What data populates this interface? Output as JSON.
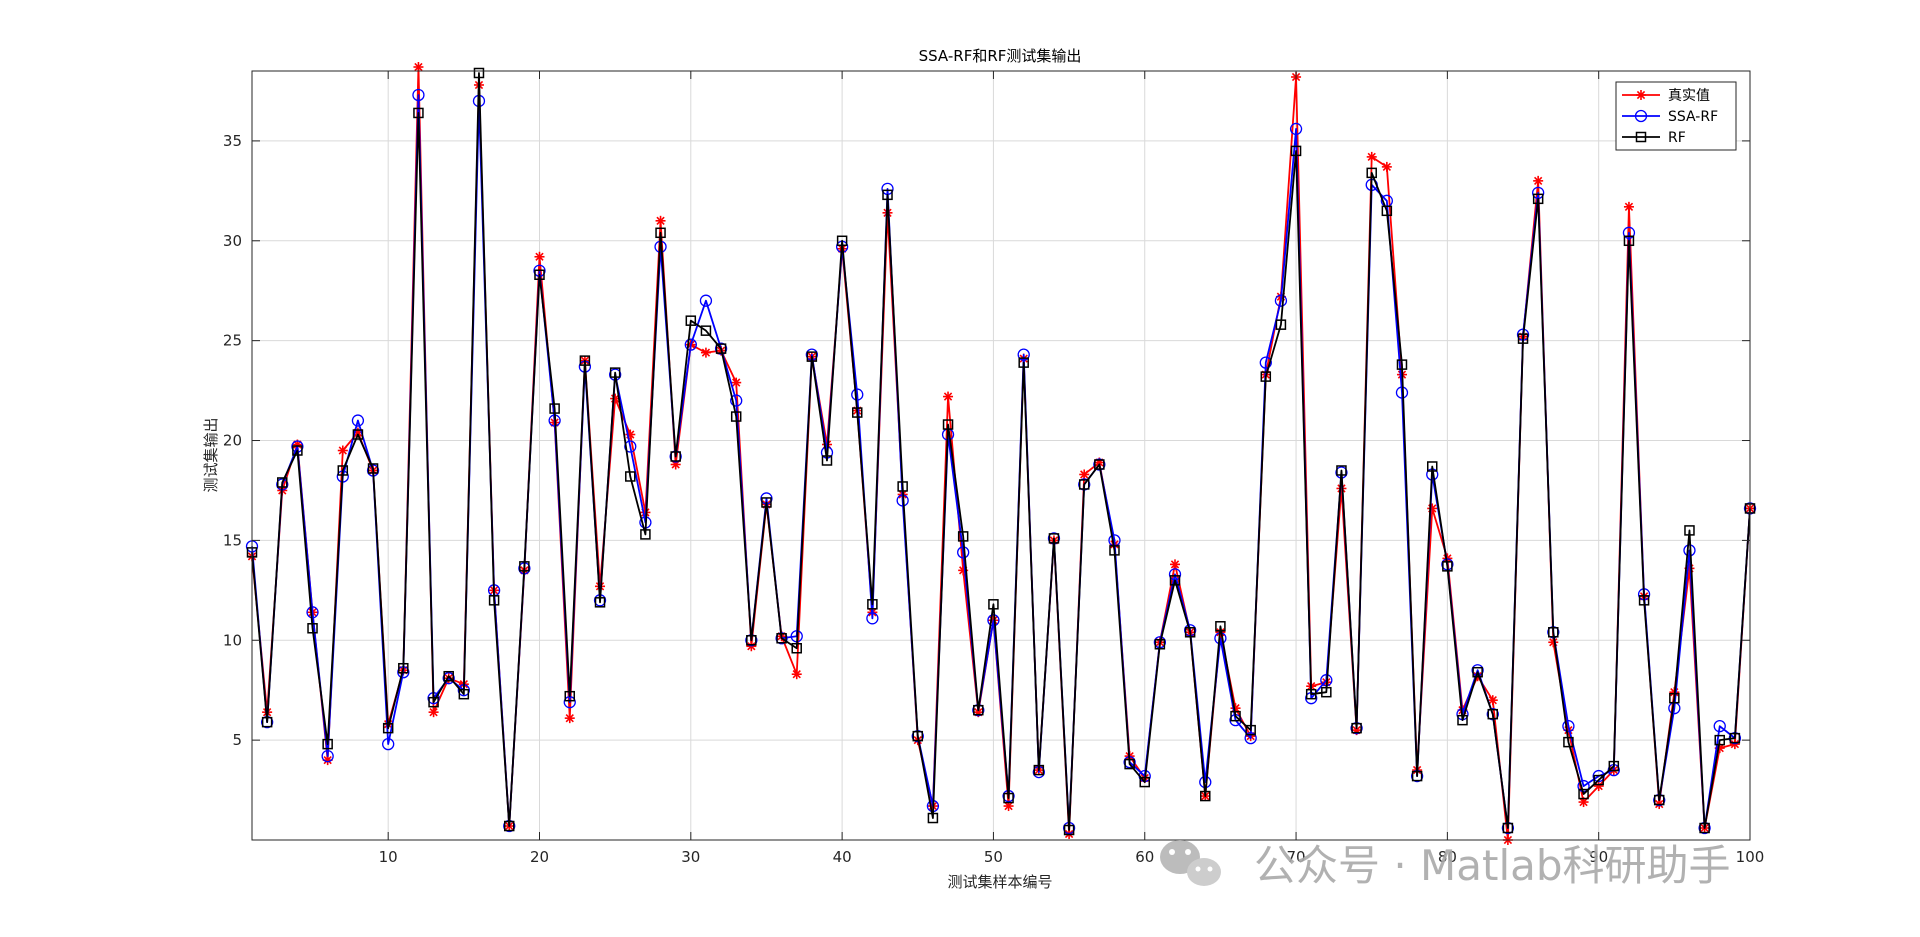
{
  "chart_data": {
    "type": "line",
    "title": "SSA-RF和RF测试集输出",
    "xlabel": "测试集样本编号",
    "ylabel": "测试集输出",
    "xlim": [
      1,
      100
    ],
    "ylim": [
      0,
      38.5
    ],
    "xticks": [
      10,
      20,
      30,
      40,
      50,
      60,
      70,
      80,
      90,
      100
    ],
    "yticks": [
      5,
      10,
      15,
      20,
      25,
      30,
      35
    ],
    "grid": true,
    "legend_position": "top-right",
    "x": [
      1,
      2,
      3,
      4,
      5,
      6,
      7,
      8,
      9,
      10,
      11,
      12,
      13,
      14,
      15,
      16,
      17,
      18,
      19,
      20,
      21,
      22,
      23,
      24,
      25,
      26,
      27,
      28,
      29,
      30,
      31,
      32,
      33,
      34,
      35,
      36,
      37,
      38,
      39,
      40,
      41,
      42,
      43,
      44,
      45,
      46,
      47,
      48,
      49,
      50,
      51,
      52,
      53,
      54,
      55,
      56,
      57,
      58,
      59,
      60,
      61,
      62,
      63,
      64,
      65,
      66,
      67,
      68,
      69,
      70,
      71,
      72,
      73,
      74,
      75,
      76,
      77,
      78,
      79,
      80,
      81,
      82,
      83,
      84,
      85,
      86,
      87,
      88,
      89,
      90,
      91,
      92,
      93,
      94,
      95,
      96,
      97,
      98,
      99,
      100
    ],
    "series": [
      {
        "name": "真实值",
        "color": "#ff0000",
        "marker": "asterisk",
        "values": [
          14.2,
          6.4,
          17.5,
          19.8,
          11.4,
          4.0,
          19.5,
          20.4,
          18.5,
          5.8,
          8.5,
          38.7,
          6.4,
          8.1,
          7.8,
          37.8,
          12.5,
          0.7,
          13.5,
          29.2,
          20.9,
          6.1,
          24.0,
          12.7,
          22.1,
          20.3,
          16.4,
          31.0,
          18.8,
          24.8,
          24.4,
          24.5,
          22.9,
          9.7,
          16.8,
          10.2,
          8.3,
          24.2,
          19.8,
          29.6,
          21.5,
          11.4,
          31.4,
          17.3,
          5.0,
          1.7,
          22.2,
          13.5,
          6.4,
          11.0,
          1.7,
          24.1,
          3.5,
          15.0,
          0.3,
          18.3,
          18.9,
          14.8,
          4.2,
          3.1,
          9.9,
          13.8,
          10.4,
          2.2,
          10.4,
          6.6,
          5.2,
          23.3,
          27.2,
          38.2,
          7.7,
          7.9,
          17.6,
          5.5,
          34.2,
          33.7,
          23.3,
          3.5,
          16.6,
          14.1,
          6.5,
          8.2,
          7.0,
          0.0,
          25.2,
          33.0,
          9.9,
          5.5,
          1.9,
          2.7,
          3.5,
          31.7,
          12.2,
          1.8,
          7.4,
          13.6,
          0.6,
          4.6,
          4.8,
          16.6
        ]
      },
      {
        "name": "SSA-RF",
        "color": "#0000ff",
        "marker": "circle",
        "values": [
          14.7,
          5.9,
          17.8,
          19.7,
          11.4,
          4.2,
          18.2,
          21.0,
          18.5,
          4.8,
          8.4,
          37.3,
          7.1,
          8.1,
          7.5,
          37.0,
          12.5,
          0.7,
          13.6,
          28.5,
          21.0,
          6.9,
          23.7,
          12.0,
          23.3,
          19.7,
          15.9,
          29.7,
          19.2,
          24.8,
          27.0,
          24.6,
          22.0,
          10.0,
          17.1,
          10.1,
          10.2,
          24.3,
          19.4,
          29.7,
          22.3,
          11.1,
          32.6,
          17.0,
          5.2,
          1.7,
          20.3,
          14.4,
          6.5,
          11.0,
          2.2,
          24.3,
          3.4,
          15.1,
          0.6,
          17.8,
          18.8,
          15.0,
          3.9,
          3.2,
          9.9,
          13.3,
          10.5,
          2.9,
          10.1,
          6.0,
          5.1,
          23.9,
          27.0,
          35.6,
          7.1,
          8.0,
          18.4,
          5.6,
          32.8,
          32.0,
          22.4,
          3.2,
          18.3,
          13.8,
          6.3,
          8.5,
          6.3,
          0.6,
          25.3,
          32.4,
          10.4,
          5.7,
          2.7,
          3.2,
          3.5,
          30.4,
          12.3,
          2.0,
          6.6,
          14.5,
          0.6,
          5.7,
          5.1,
          16.6
        ]
      },
      {
        "name": "RF",
        "color": "#000000",
        "marker": "square",
        "values": [
          14.4,
          5.9,
          17.9,
          19.5,
          10.6,
          4.8,
          18.5,
          20.3,
          18.6,
          5.6,
          8.6,
          36.4,
          6.9,
          8.2,
          7.3,
          38.4,
          12.0,
          0.7,
          13.7,
          28.3,
          21.6,
          7.2,
          24.0,
          11.9,
          23.4,
          18.2,
          15.3,
          30.4,
          19.2,
          26.0,
          25.5,
          24.6,
          21.2,
          10.0,
          16.9,
          10.1,
          9.6,
          24.2,
          19.0,
          30.0,
          21.4,
          11.8,
          32.3,
          17.7,
          5.2,
          1.1,
          20.8,
          15.2,
          6.5,
          11.8,
          2.1,
          23.9,
          3.5,
          15.1,
          0.5,
          17.8,
          18.8,
          14.5,
          3.8,
          2.9,
          9.8,
          13.0,
          10.4,
          2.2,
          10.7,
          6.2,
          5.5,
          23.2,
          25.8,
          34.5,
          7.3,
          7.4,
          18.5,
          5.6,
          33.4,
          31.5,
          23.8,
          3.2,
          18.7,
          13.7,
          6.0,
          8.4,
          6.3,
          0.6,
          25.1,
          32.1,
          10.4,
          4.9,
          2.3,
          3.0,
          3.7,
          30.0,
          12.0,
          2.0,
          7.1,
          15.5,
          0.6,
          5.0,
          5.1,
          16.6
        ]
      }
    ]
  },
  "watermark": {
    "text": "公众号 · Matlab科研助手",
    "icon": "wechat-icon"
  }
}
